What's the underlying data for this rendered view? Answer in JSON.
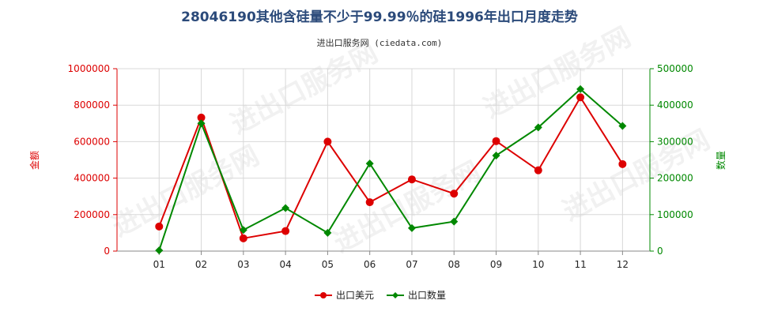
{
  "chart_data": {
    "type": "line",
    "title": "28046190其他含硅量不少于99.99％的硅1996年出口月度走势",
    "subtitle": "进出口服务网 (ciedata.com)",
    "categories": [
      "01",
      "02",
      "03",
      "04",
      "05",
      "06",
      "07",
      "08",
      "09",
      "10",
      "11",
      "12"
    ],
    "y_left": {
      "label": "金额",
      "min": 0,
      "max": 1000000,
      "ticks": [
        0,
        200000,
        400000,
        600000,
        800000,
        1000000
      ],
      "color": "#dd0000"
    },
    "y_right": {
      "label": "数量",
      "min": 0,
      "max": 500000,
      "ticks": [
        0,
        100000,
        200000,
        300000,
        400000,
        500000
      ],
      "color": "#008800"
    },
    "series": [
      {
        "name": "出口美元",
        "axis": "left",
        "color": "#dd0000",
        "values": [
          135000,
          732000,
          70000,
          110000,
          600000,
          268000,
          393000,
          315000,
          603000,
          443000,
          843000,
          477000
        ]
      },
      {
        "name": "出口数量",
        "axis": "right",
        "color": "#008800",
        "values": [
          2000,
          350000,
          58000,
          118000,
          50000,
          240000,
          63000,
          81000,
          262000,
          339000,
          444000,
          343000
        ]
      }
    ],
    "grid": true,
    "legend": "bottom-center"
  },
  "watermark": "进出口服务网"
}
